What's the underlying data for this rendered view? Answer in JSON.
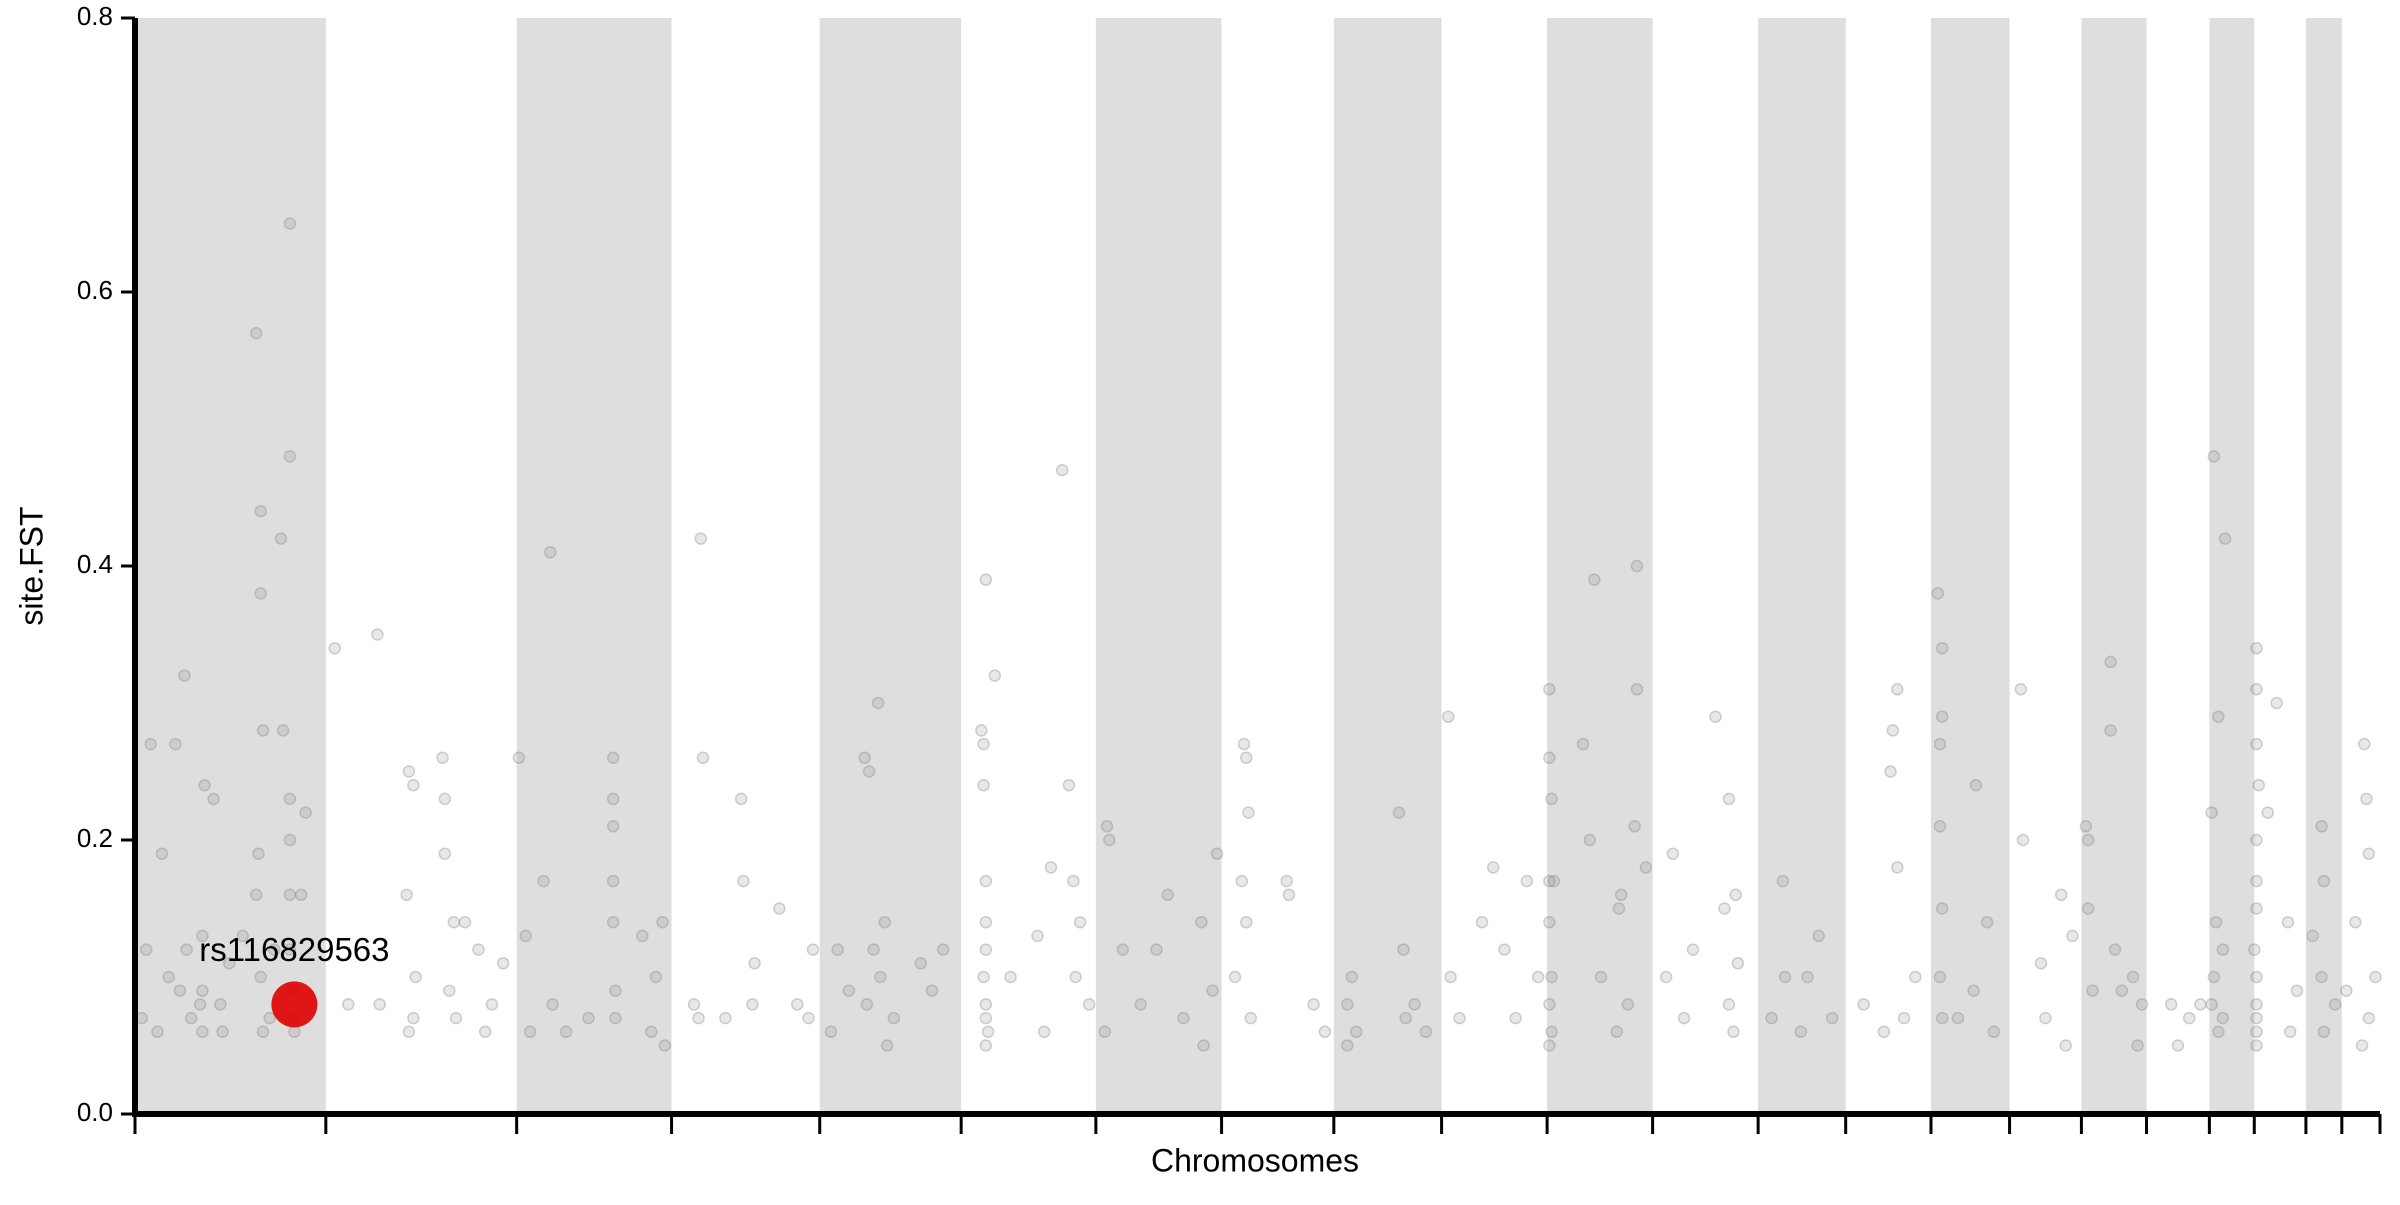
{
  "chart_data": {
    "type": "scatter",
    "x_label": "Chromosomes",
    "y_label": "site.FST",
    "xlim": [
      0,
      100
    ],
    "ylim": [
      0,
      0.8
    ],
    "yticks": [
      {
        "value": 0,
        "label": "0.0"
      },
      0.2,
      0.4,
      0.6,
      0.8
    ],
    "xticks": [
      0,
      8.5,
      17.0,
      23.9,
      30.5,
      36.8,
      42.8,
      48.4,
      53.4,
      58.2,
      62.9,
      67.6,
      72.3,
      76.2,
      80.0,
      83.5,
      86.7,
      89.6,
      92.4,
      94.4,
      96.7,
      98.3,
      100
    ],
    "band_color": "#dedede",
    "color": "#808080",
    "x": [
      0.3,
      0.5,
      0.7,
      1,
      1.2,
      1.5,
      1.8,
      2,
      2.3,
      2.5,
      2.2,
      2.9,
      3.0,
      3.0,
      3.0,
      3.1,
      3.5,
      3.8,
      4.2,
      5.4,
      5.6,
      5.6,
      5.7,
      5.5,
      5.4,
      5.6,
      5.7,
      6.5,
      6.6,
      6.9,
      6.9,
      6.9,
      6.9,
      6.9,
      6.9,
      7.0,
      7.0,
      7.1,
      7.6,
      7.4,
      6.2,
      6.0,
      4.8,
      3.9,
      8.9,
      9.5,
      10.8,
      10.9,
      12.2,
      12.1,
      12.4,
      12.5,
      12.4,
      12.2,
      13.7,
      13.8,
      13.8,
      14.2,
      14.0,
      14.7,
      15.3,
      15.6,
      15.9,
      14.3,
      16.4,
      17.1,
      17.4,
      17.6,
      18.2,
      18.5,
      18.6,
      19.2,
      20.2,
      21.3,
      21.3,
      21.3,
      21.3,
      21.3,
      21.4,
      21.4,
      22.6,
      23.5,
      23.2,
      23.0,
      23.6,
      25.2,
      25.3,
      24.9,
      25.1,
      26.3,
      27.0,
      27.1,
      27.6,
      27.5,
      28.7,
      29.5,
      30.0,
      30.2,
      31.3,
      31.8,
      32.5,
      32.7,
      32.6,
      32.9,
      33.1,
      33.2,
      33.4,
      33.8,
      31.0,
      33.5,
      35.0,
      35.5,
      36.0,
      37.7,
      37.8,
      37.9,
      37.8,
      37.9,
      37.9,
      37.9,
      37.8,
      37.9,
      37.9,
      38.0,
      37.9,
      38.3,
      39.0,
      40.2,
      40.8,
      41.3,
      41.6,
      41.8,
      42.1,
      41.9,
      42.5,
      40.5,
      43.3,
      43.4,
      43.2,
      44.0,
      44.8,
      45.5,
      46.0,
      46.7,
      47.5,
      47.6,
      48.2,
      48.0,
      49.4,
      49.5,
      49.6,
      49.3,
      49.5,
      49.0,
      49.7,
      51.3,
      51.4,
      52.5,
      53.0,
      54.2,
      54.0,
      54.4,
      54.0,
      56.3,
      56.5,
      57.0,
      57.5,
      56.6,
      58.5,
      58.6,
      59.0,
      60.0,
      60.5,
      61.0,
      61.5,
      62.0,
      62.5,
      63.0,
      63.0,
      63.1,
      63.0,
      63.0,
      63.1,
      63.0,
      63.1,
      63.0,
      63.2,
      64.5,
      65.0,
      64.8,
      66.1,
      66.2,
      66.8,
      66.9,
      66.9,
      66.5,
      66.0,
      67.3,
      65.3,
      68.2,
      68.5,
      69.4,
      70.4,
      71.0,
      70.8,
      71.0,
      71.3,
      71.4,
      71.2,
      69.0,
      72.9,
      73.5,
      73.4,
      74.5,
      75.0,
      74.2,
      75.6,
      77.0,
      78.5,
      78.3,
      78.2,
      78.5,
      78.8,
      79.3,
      77.9,
      80.3,
      80.5,
      80.5,
      80.4,
      80.4,
      80.5,
      80.4,
      80.5,
      81.2,
      82.0,
      82.5,
      81.9,
      82.8,
      84.0,
      84.1,
      84.9,
      85.1,
      85.8,
      86.3,
      86.0,
      86.9,
      87.0,
      87.0,
      87.2,
      88.0,
      88.0,
      88.2,
      88.5,
      89.0,
      89.4,
      89.2,
      90.7,
      91.5,
      91.0,
      92.0,
      92.6,
      92.8,
      92.5,
      92.7,
      92.6,
      92.5,
      92.8,
      93.1,
      93.0,
      93.0,
      94.5,
      94.5,
      94.5,
      94.6,
      94.5,
      94.5,
      94.5,
      94.4,
      94.5,
      94.5,
      94.5,
      94.5,
      94.5,
      95.4,
      95.9,
      96.3,
      96.0,
      95.0,
      97.0,
      97.4,
      97.5,
      97.4,
      97.5,
      98.0,
      98.5,
      98.9,
      99.3,
      99.4,
      99.5,
      99.5,
      99.8,
      99.2
    ],
    "values": [
      0.07,
      0.12,
      0.27,
      0.06,
      0.19,
      0.1,
      0.27,
      0.09,
      0.12,
      0.07,
      0.32,
      0.08,
      0.06,
      0.09,
      0.13,
      0.24,
      0.23,
      0.08,
      0.11,
      0.57,
      0.44,
      0.38,
      0.28,
      0.19,
      0.16,
      0.1,
      0.06,
      0.42,
      0.28,
      0.65,
      0.48,
      0.23,
      0.2,
      0.16,
      0.12,
      0.09,
      0.07,
      0.06,
      0.22,
      0.16,
      0.12,
      0.07,
      0.13,
      0.06,
      0.34,
      0.08,
      0.35,
      0.08,
      0.25,
      0.16,
      0.24,
      0.1,
      0.07,
      0.06,
      0.26,
      0.23,
      0.19,
      0.14,
      0.09,
      0.14,
      0.12,
      0.06,
      0.08,
      0.07,
      0.11,
      0.26,
      0.13,
      0.06,
      0.17,
      0.41,
      0.08,
      0.06,
      0.07,
      0.26,
      0.23,
      0.21,
      0.17,
      0.14,
      0.09,
      0.07,
      0.13,
      0.14,
      0.1,
      0.06,
      0.05,
      0.42,
      0.26,
      0.08,
      0.07,
      0.07,
      0.23,
      0.17,
      0.11,
      0.08,
      0.15,
      0.08,
      0.07,
      0.12,
      0.12,
      0.09,
      0.26,
      0.25,
      0.08,
      0.12,
      0.3,
      0.1,
      0.14,
      0.07,
      0.06,
      0.05,
      0.11,
      0.09,
      0.12,
      0.28,
      0.27,
      0.39,
      0.24,
      0.17,
      0.14,
      0.12,
      0.1,
      0.08,
      0.07,
      0.06,
      0.05,
      0.32,
      0.1,
      0.13,
      0.18,
      0.47,
      0.24,
      0.17,
      0.14,
      0.1,
      0.08,
      0.06,
      0.21,
      0.2,
      0.06,
      0.12,
      0.08,
      0.12,
      0.16,
      0.07,
      0.14,
      0.05,
      0.19,
      0.09,
      0.27,
      0.26,
      0.22,
      0.17,
      0.14,
      0.1,
      0.07,
      0.17,
      0.16,
      0.08,
      0.06,
      0.1,
      0.08,
      0.06,
      0.05,
      0.22,
      0.12,
      0.08,
      0.06,
      0.07,
      0.29,
      0.1,
      0.07,
      0.14,
      0.18,
      0.12,
      0.07,
      0.17,
      0.1,
      0.31,
      0.26,
      0.23,
      0.17,
      0.14,
      0.1,
      0.08,
      0.06,
      0.05,
      0.17,
      0.27,
      0.39,
      0.2,
      0.15,
      0.16,
      0.21,
      0.4,
      0.31,
      0.08,
      0.06,
      0.18,
      0.1,
      0.1,
      0.19,
      0.12,
      0.29,
      0.23,
      0.15,
      0.08,
      0.16,
      0.11,
      0.06,
      0.07,
      0.07,
      0.1,
      0.17,
      0.1,
      0.13,
      0.06,
      0.07,
      0.08,
      0.31,
      0.28,
      0.25,
      0.18,
      0.07,
      0.1,
      0.06,
      0.38,
      0.34,
      0.29,
      0.27,
      0.21,
      0.15,
      0.1,
      0.07,
      0.07,
      0.24,
      0.14,
      0.09,
      0.06,
      0.31,
      0.2,
      0.11,
      0.07,
      0.16,
      0.13,
      0.05,
      0.21,
      0.2,
      0.15,
      0.09,
      0.33,
      0.28,
      0.12,
      0.09,
      0.1,
      0.08,
      0.05,
      0.08,
      0.07,
      0.05,
      0.08,
      0.48,
      0.29,
      0.22,
      0.14,
      0.1,
      0.08,
      0.06,
      0.42,
      0.12,
      0.07,
      0.34,
      0.31,
      0.27,
      0.24,
      0.2,
      0.17,
      0.15,
      0.12,
      0.1,
      0.08,
      0.07,
      0.06,
      0.05,
      0.3,
      0.14,
      0.09,
      0.06,
      0.22,
      0.13,
      0.21,
      0.17,
      0.1,
      0.06,
      0.08,
      0.09,
      0.14,
      0.27,
      0.23,
      0.19,
      0.07,
      0.1,
      0.05
    ],
    "highlight": {
      "label": "rs116829563",
      "x": 7.1,
      "y": 0.08,
      "color": "#e00000"
    }
  }
}
